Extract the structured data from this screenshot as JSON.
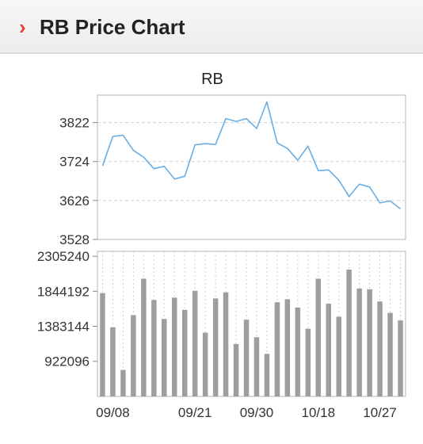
{
  "header": {
    "chevron": "›",
    "title": "RB Price Chart"
  },
  "colors": {
    "line": "#6aaee3",
    "bar": "#9e9e9e",
    "accent": "#e8412b",
    "grid": "#d0d0d0"
  },
  "chart_data": [
    {
      "type": "line",
      "title": "RB",
      "xlabel": "",
      "ylabel": "",
      "y_ticks": [
        "3822",
        "3724",
        "3626",
        "3528"
      ],
      "ylim": [
        3528,
        3891
      ],
      "grid": true,
      "values": [
        3713,
        3787,
        3790,
        3752,
        3735,
        3706,
        3712,
        3680,
        3687,
        3766,
        3769,
        3767,
        3832,
        3825,
        3832,
        3807,
        3874,
        3771,
        3757,
        3727,
        3763,
        3701,
        3703,
        3677,
        3636,
        3667,
        3660,
        3620,
        3625,
        3605
      ]
    },
    {
      "type": "bar",
      "title": "",
      "xlabel": "",
      "ylabel": "",
      "y_ticks": [
        "2305240",
        "1844192",
        "1383144",
        "922096"
      ],
      "ylim": [
        460000,
        2370000
      ],
      "grid": true,
      "x_ticks": [
        "09/08",
        "09/21",
        "09/30",
        "10/18",
        "10/27"
      ],
      "values": [
        1820000,
        1370000,
        810000,
        1530000,
        2010000,
        1730000,
        1480000,
        1760000,
        1600000,
        1850000,
        1300000,
        1750000,
        1830000,
        1150000,
        1470000,
        1240000,
        1020000,
        1700000,
        1740000,
        1630000,
        1350000,
        2010000,
        1680000,
        1510000,
        2130000,
        1880000,
        1870000,
        1710000,
        1560000,
        1460000
      ]
    }
  ]
}
